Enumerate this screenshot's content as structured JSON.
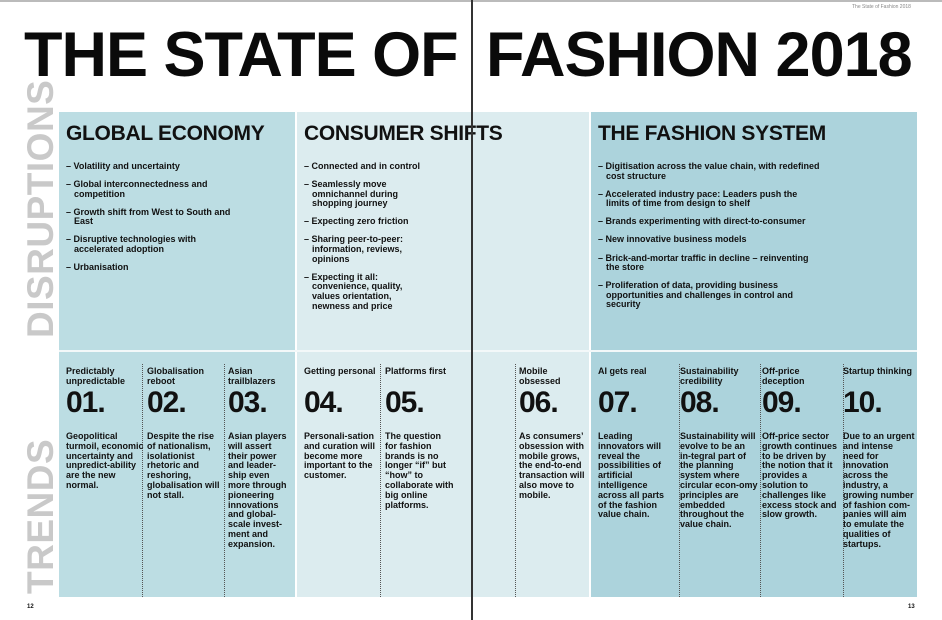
{
  "running_header": "The State of Fashion 2018",
  "title_left": "THE STATE OF",
  "title_right": "FASHION 2018",
  "row_labels": {
    "disruptions": "DISRUPTIONS",
    "trends": "TRENDS"
  },
  "colors": {
    "economy": "#bcdde3",
    "consumer": "#dcecef",
    "system": "#acd3dc",
    "row_label": "#c9c9c9"
  },
  "disruptions": [
    {
      "heading": "GLOBAL ECONOMY",
      "items": [
        "– Volatility and uncertainty",
        "– Global interconnectedness and competition",
        "– Growth shift from West to South and East",
        "– Disruptive technologies with accelerated adoption",
        "– Urbanisation"
      ]
    },
    {
      "heading": "CONSUMER SHIFTS",
      "items": [
        "– Connected and in control",
        "– Seamlessly move omnichannel during shopping journey",
        "– Expecting zero friction",
        "– Sharing peer-to-peer: information, reviews, opinions",
        "– Expecting it all: convenience, quality, values orientation, newness and price"
      ]
    },
    {
      "heading": "THE FASHION SYSTEM",
      "items": [
        "– Digitisation across the value chain, with redefined cost structure",
        "– Accelerated industry pace: Leaders push the limits of time from design to shelf",
        "– Brands experimenting with direct-to-consumer",
        "– New innovative business models",
        "– Brick-and-mortar traffic in decline – reinventing the store",
        "– Proliferation of data, providing business opportunities and challenges in control and security"
      ]
    }
  ],
  "trends": [
    {
      "title": "Predictably unpredictable",
      "number": "01.",
      "body": "Geopolitical turmoil, economic uncertainty and unpredict-ability are the new normal."
    },
    {
      "title": "Globalisation reboot",
      "number": "02.",
      "body": "Despite the rise of nationalism, isolationist rhetoric and reshoring, globalisation will not stall."
    },
    {
      "title": "Asian trailblazers",
      "number": "03.",
      "body": "Asian players will assert their power and leader-ship even more through pioneering innovations and global-scale invest-ment and expansion."
    },
    {
      "title": "Getting personal",
      "number": "04.",
      "body": "Personali-sation and curation will become more important to the customer."
    },
    {
      "title": "Platforms first",
      "number": "05.",
      "body": "The question for fashion brands is no longer “if” but “how” to collaborate with big online platforms."
    },
    {
      "title": "Mobile obsessed",
      "number": "06.",
      "body": "As consumers’ obsession with mobile grows, the end-to-end transaction will also move to mobile."
    },
    {
      "title": "AI gets real",
      "number": "07.",
      "body": "Leading innovators will reveal the possibilities of artificial intelligence across all parts of the fashion value chain."
    },
    {
      "title": "Sustainability credibility",
      "number": "08.",
      "body": "Sustainability will evolve to be an in-tegral part of the planning system where circular econ-omy principles are embedded throughout the value chain."
    },
    {
      "title": "Off-price deception",
      "number": "09.",
      "body": "Off-price sector growth continues to be driven by the notion that it provides a solution to challenges like excess stock and slow growth."
    },
    {
      "title": "Startup thinking",
      "number": "10.",
      "body": "Due to an urgent and intense need for innovation across the industry, a growing number of fashion com-panies will aim to emulate the qualities of startups."
    }
  ],
  "page_numbers": {
    "left": "12",
    "right": "13"
  }
}
